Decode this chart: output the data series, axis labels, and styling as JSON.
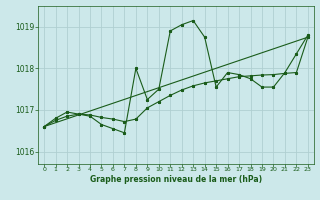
{
  "title": "Graphe pression niveau de la mer (hPa)",
  "background_color": "#cce8ea",
  "grid_color": "#b0cfd1",
  "line_color": "#1a5c1a",
  "title_bg": "#1a5c1a",
  "title_fg": "#cce8ea",
  "xlim": [
    -0.5,
    23.5
  ],
  "ylim": [
    1015.7,
    1019.5
  ],
  "yticks": [
    1016,
    1017,
    1018,
    1019
  ],
  "xticks": [
    0,
    1,
    2,
    3,
    4,
    5,
    6,
    7,
    8,
    9,
    10,
    11,
    12,
    13,
    14,
    15,
    16,
    17,
    18,
    19,
    20,
    21,
    22,
    23
  ],
  "series1_x": [
    0,
    1,
    2,
    3,
    4,
    5,
    6,
    7,
    8,
    9,
    10,
    11,
    12,
    13,
    14,
    15,
    16,
    17,
    18,
    19,
    20,
    21,
    22,
    23
  ],
  "series1_y": [
    1016.6,
    1016.8,
    1016.95,
    1016.9,
    1016.85,
    1016.65,
    1016.55,
    1016.45,
    1018.0,
    1017.25,
    1017.5,
    1018.9,
    1019.05,
    1019.15,
    1018.75,
    1017.55,
    1017.9,
    1017.85,
    1017.75,
    1017.55,
    1017.55,
    1017.9,
    1018.35,
    1018.8
  ],
  "series2_x": [
    0,
    1,
    2,
    3,
    4,
    5,
    6,
    7,
    8,
    9,
    10,
    11,
    12,
    13,
    14,
    15,
    16,
    17,
    18,
    19,
    20,
    21,
    22,
    23
  ],
  "series2_y": [
    1016.6,
    1016.75,
    1016.85,
    1016.9,
    1016.88,
    1016.82,
    1016.78,
    1016.72,
    1016.78,
    1017.05,
    1017.2,
    1017.35,
    1017.48,
    1017.58,
    1017.65,
    1017.7,
    1017.75,
    1017.8,
    1017.82,
    1017.84,
    1017.85,
    1017.88,
    1017.9,
    1018.75
  ],
  "series3_x": [
    0,
    23
  ],
  "series3_y": [
    1016.6,
    1018.75
  ]
}
